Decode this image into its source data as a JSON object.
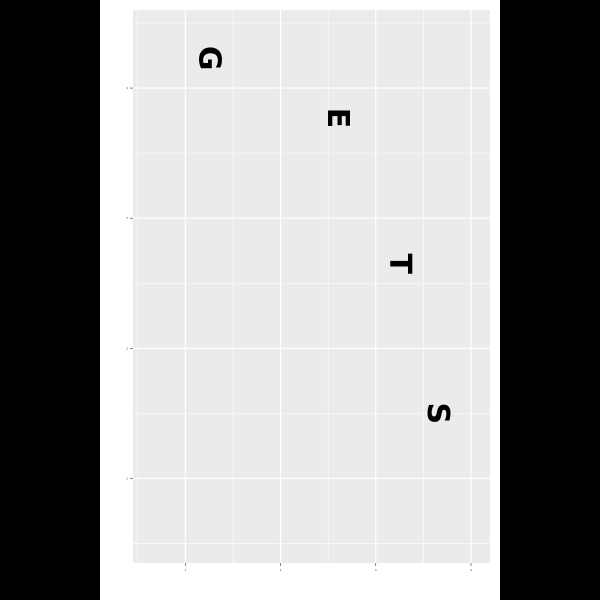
{
  "chart_data": {
    "type": "scatter",
    "title": "",
    "xlabel": "",
    "ylabel": "",
    "xlim": [
      0.45,
      4.2
    ],
    "ylim": [
      0.35,
      4.6
    ],
    "x_ticks": [
      1,
      2,
      3,
      4
    ],
    "y_ticks": [
      1,
      2,
      3,
      4
    ],
    "grid": true,
    "panel_background": "#ebebeb",
    "grid_color": "#ffffff",
    "legend": "none",
    "points": [
      {
        "x": 1.25,
        "y": 4.23,
        "label": "G"
      },
      {
        "x": 2.6,
        "y": 3.77,
        "label": "E"
      },
      {
        "x": 3.25,
        "y": 2.65,
        "label": "T"
      },
      {
        "x": 3.65,
        "y": 1.5,
        "label": "S"
      }
    ]
  }
}
